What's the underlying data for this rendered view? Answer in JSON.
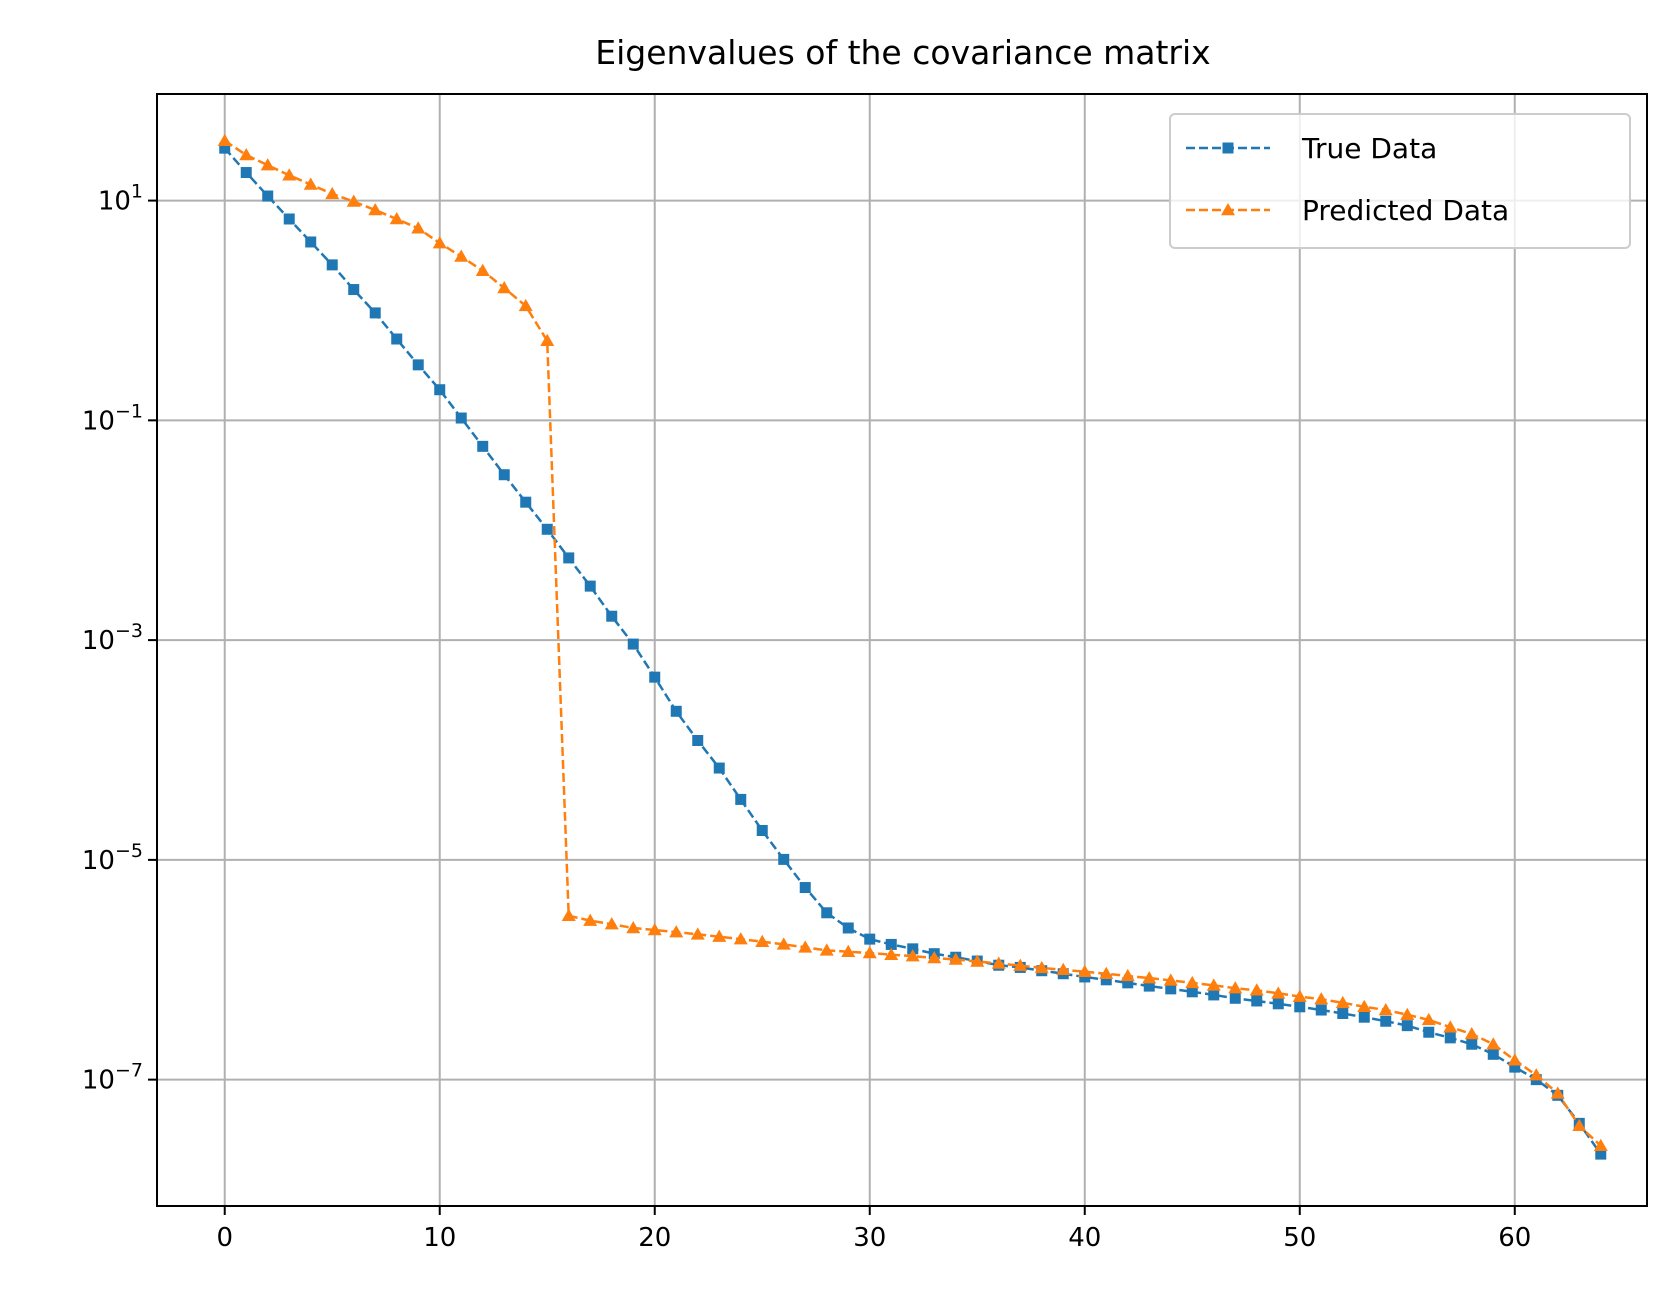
{
  "chart_data": {
    "type": "line",
    "title": "Eigenvalues of the covariance matrix",
    "xlabel": "",
    "ylabel": "",
    "xlim": [
      -3.15,
      66.15
    ],
    "ylim_log10": [
      -8.15,
      1.97
    ],
    "yscale": "log",
    "grid": true,
    "legend_position": "top-right",
    "x_ticks": [
      0,
      10,
      20,
      30,
      40,
      50,
      60
    ],
    "y_ticks": [
      {
        "exp": 1,
        "base": "10",
        "sup": "1"
      },
      {
        "exp": -1,
        "base": "10",
        "sup": "−1"
      },
      {
        "exp": -3,
        "base": "10",
        "sup": "−3"
      },
      {
        "exp": -5,
        "base": "10",
        "sup": "−5"
      },
      {
        "exp": -7,
        "base": "10",
        "sup": "−7"
      }
    ],
    "series": [
      {
        "name": "True Data",
        "color": "#1f77b4",
        "marker": "square",
        "linestyle": "dashed",
        "y": [
          30,
          18,
          11,
          6.8,
          4.2,
          2.6,
          1.55,
          0.95,
          0.55,
          0.32,
          0.19,
          0.105,
          0.058,
          0.032,
          0.018,
          0.0102,
          0.0056,
          0.0031,
          0.00165,
          0.00092,
          0.00046,
          0.000225,
          0.000122,
          6.85e-05,
          3.55e-05,
          1.85e-05,
          1.01e-05,
          5.6e-06,
          3.3e-06,
          2.4e-06,
          1.9e-06,
          1.7e-06,
          1.55e-06,
          1.4e-06,
          1.3e-06,
          1.2e-06,
          1.1e-06,
          1.05e-06,
          9.8e-07,
          9.2e-07,
          8.6e-07,
          8.1e-07,
          7.6e-07,
          7.1e-07,
          6.7e-07,
          6.3e-07,
          5.9e-07,
          5.5e-07,
          5.2e-07,
          4.9e-07,
          4.6e-07,
          4.3e-07,
          4e-07,
          3.7e-07,
          3.4e-07,
          3.1e-07,
          2.7e-07,
          2.4e-07,
          2.1e-07,
          1.7e-07,
          1.3e-07,
          1e-07,
          7.2e-08,
          4e-08,
          2.1e-08
        ]
      },
      {
        "name": "Predicted Data",
        "color": "#ff7f0e",
        "marker": "triangle",
        "linestyle": "dashed",
        "y": [
          35,
          26,
          21,
          17,
          14,
          11.5,
          9.8,
          8.2,
          6.8,
          5.6,
          4.1,
          3.1,
          2.3,
          1.6,
          1.1,
          0.53,
          3.1e-06,
          2.8e-06,
          2.6e-06,
          2.4e-06,
          2.3e-06,
          2.2e-06,
          2.1e-06,
          2e-06,
          1.9e-06,
          1.8e-06,
          1.7e-06,
          1.6e-06,
          1.5e-06,
          1.46e-06,
          1.42e-06,
          1.37e-06,
          1.33e-06,
          1.28e-06,
          1.24e-06,
          1.19e-06,
          1.14e-06,
          1.09e-06,
          1.04e-06,
          1e-06,
          9.6e-07,
          9.2e-07,
          8.8e-07,
          8.4e-07,
          8e-07,
          7.6e-07,
          7.2e-07,
          6.8e-07,
          6.5e-07,
          6.1e-07,
          5.7e-07,
          5.4e-07,
          5e-07,
          4.6e-07,
          4.3e-07,
          3.9e-07,
          3.5e-07,
          3e-07,
          2.6e-07,
          2.1e-07,
          1.5e-07,
          1.1e-07,
          7.5e-08,
          3.8e-08,
          2.5e-08
        ]
      }
    ]
  }
}
